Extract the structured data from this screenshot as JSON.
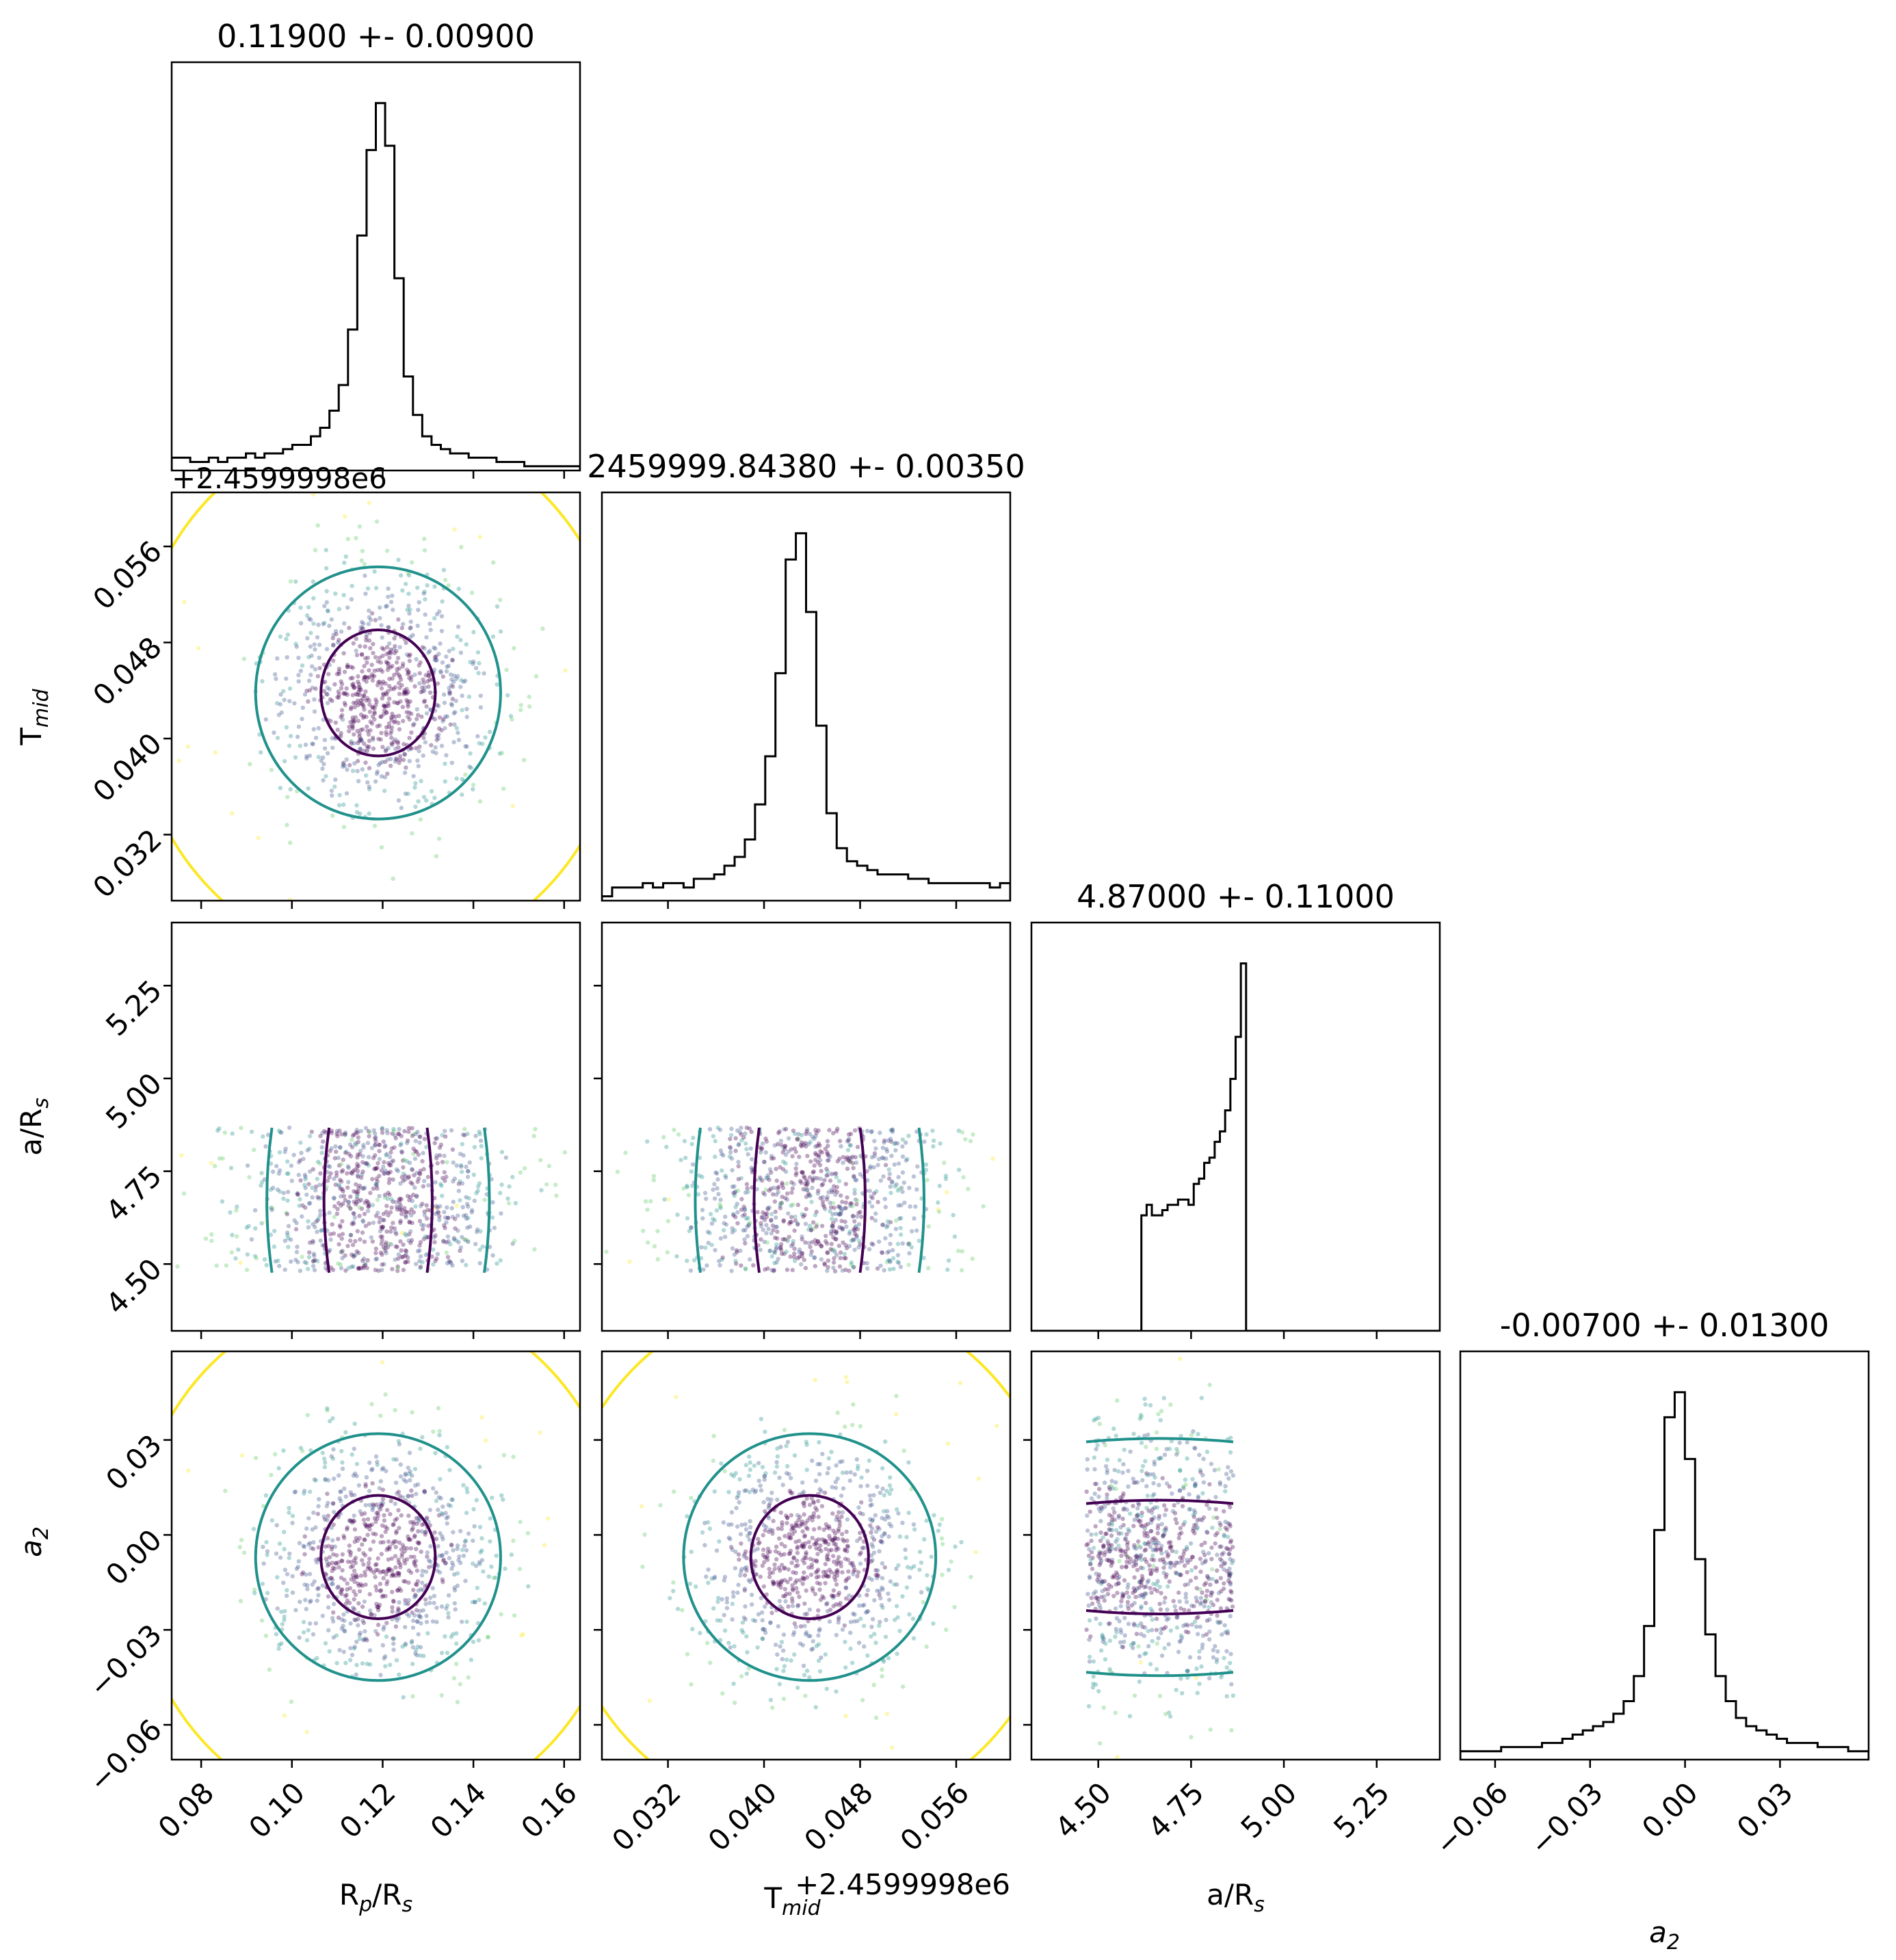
{
  "chart_data": {
    "type": "scatter",
    "subtype": "corner-plot",
    "parameters": [
      {
        "id": "rp",
        "label": "R_p/R_s",
        "title": "0.11900 +- 0.00900",
        "median": 0.119,
        "sigma": 0.009,
        "range": [
          0.0735,
          0.1635
        ],
        "ticks": [
          0.08,
          0.1,
          0.12,
          0.14,
          0.16
        ],
        "tick_labels": [
          "0.08",
          "0.10",
          "0.12",
          "0.14",
          "0.16"
        ],
        "ylabel": "",
        "offset_text": ""
      },
      {
        "id": "tmid",
        "label": "T_mid",
        "title": "2459999.84380 +- 0.00350",
        "median": 0.0438,
        "sigma": 0.0035,
        "range": [
          0.0265,
          0.0605
        ],
        "ticks": [
          0.032,
          0.04,
          0.048,
          0.056
        ],
        "tick_labels": [
          "0.032",
          "0.040",
          "0.048",
          "0.056"
        ],
        "offset_text": "+2.4599998e6"
      },
      {
        "id": "ars",
        "label": "a/R_s",
        "title": "4.87000 +- 0.11000",
        "median": 4.87,
        "sigma": 0.11,
        "range": [
          4.32,
          5.42
        ],
        "ticks": [
          4.5,
          4.75,
          5.0,
          5.25
        ],
        "tick_labels": [
          "4.50",
          "4.75",
          "5.00",
          "5.25"
        ],
        "offset_text": ""
      },
      {
        "id": "a2",
        "label": "a_2",
        "title": "-0.00700 +- 0.01300",
        "median": -0.007,
        "sigma": 0.013,
        "range": [
          -0.071,
          0.058
        ],
        "ticks": [
          -0.06,
          -0.03,
          0.0,
          0.03
        ],
        "tick_labels": [
          "−0.06",
          "−0.03",
          "0.00",
          "0.03"
        ],
        "offset_text": ""
      }
    ],
    "axis_labels": {
      "rp": {
        "main": "R",
        "sub": "p",
        "tail": "/R",
        "sub2": "s"
      },
      "tmid": {
        "main": "T",
        "sub": "mid",
        "tail": "",
        "sub2": ""
      },
      "ars": {
        "main": "a/R",
        "sub": "s",
        "tail": "",
        "sub2": ""
      },
      "a2": {
        "main": "a",
        "sub": "2",
        "tail": "",
        "sub2": "",
        "italic": true
      }
    },
    "histograms": {
      "rp": {
        "centers": [
          0.075,
          0.077,
          0.079,
          0.081,
          0.083,
          0.085,
          0.087,
          0.089,
          0.091,
          0.093,
          0.095,
          0.097,
          0.099,
          0.101,
          0.103,
          0.105,
          0.107,
          0.109,
          0.111,
          0.113,
          0.115,
          0.117,
          0.119,
          0.121,
          0.123,
          0.125,
          0.127,
          0.129,
          0.131,
          0.133,
          0.135,
          0.137,
          0.139,
          0.141,
          0.143,
          0.145,
          0.147,
          0.149,
          0.151,
          0.153,
          0.155,
          0.157,
          0.159,
          0.161
        ],
        "counts": [
          3,
          3,
          2,
          2,
          3,
          2,
          3,
          3,
          4,
          3,
          4,
          4,
          5,
          6,
          6,
          8,
          10,
          14,
          20,
          33,
          55,
          75,
          86,
          76,
          45,
          22,
          13,
          8,
          6,
          5,
          4,
          4,
          3,
          3,
          3,
          2,
          2,
          2,
          1,
          1,
          1,
          1,
          1,
          1
        ]
      },
      "tmid": {
        "counts": [
          1,
          3,
          3,
          3,
          4,
          3,
          4,
          4,
          3,
          5,
          5,
          6,
          8,
          10,
          14,
          22,
          33,
          52,
          78,
          84,
          66,
          40,
          20,
          12,
          9,
          8,
          7,
          6,
          6,
          6,
          5,
          5,
          4,
          4,
          4,
          4,
          4,
          4,
          3,
          4
        ],
        "range": [
          0.0265,
          0.0605
        ]
      },
      "ars": {
        "counts": [
          0,
          0,
          0,
          0,
          0,
          0,
          0,
          0,
          0,
          0,
          0,
          0,
          0,
          0,
          0,
          0,
          0,
          0,
          0,
          0,
          0,
          22,
          24,
          22,
          22,
          23,
          24,
          24,
          25,
          25,
          24,
          28,
          29,
          32,
          33,
          36,
          38,
          42,
          48,
          56,
          70,
          0,
          0,
          0,
          0,
          0,
          0,
          0,
          0,
          0,
          0,
          0,
          0,
          0,
          0,
          0,
          0,
          0,
          0,
          0,
          0,
          0,
          0,
          0,
          0,
          0,
          0,
          0,
          0,
          0,
          0,
          0,
          0,
          0,
          0,
          0,
          0,
          0
        ],
        "range": [
          4.32,
          5.42
        ]
      },
      "a2": {
        "counts": [
          2,
          2,
          2,
          2,
          3,
          3,
          3,
          3,
          4,
          4,
          5,
          6,
          7,
          8,
          9,
          11,
          14,
          20,
          32,
          55,
          82,
          88,
          72,
          48,
          30,
          20,
          14,
          10,
          8,
          7,
          6,
          5,
          4,
          4,
          4,
          3,
          3,
          3,
          2,
          2
        ],
        "range": [
          -0.071,
          0.058
        ]
      }
    },
    "contour_levels": [
      "1-sigma (dark purple)",
      "2-sigma (teal)",
      "3-sigma (yellow)"
    ],
    "colors": {
      "sigma1": "#440154",
      "sigma2": "#21918c",
      "sigma3": "#fde725",
      "hist": "#000000",
      "mid": "#3b528b",
      "mid2": "#5ec962"
    },
    "scatter_colormap": "viridis"
  }
}
